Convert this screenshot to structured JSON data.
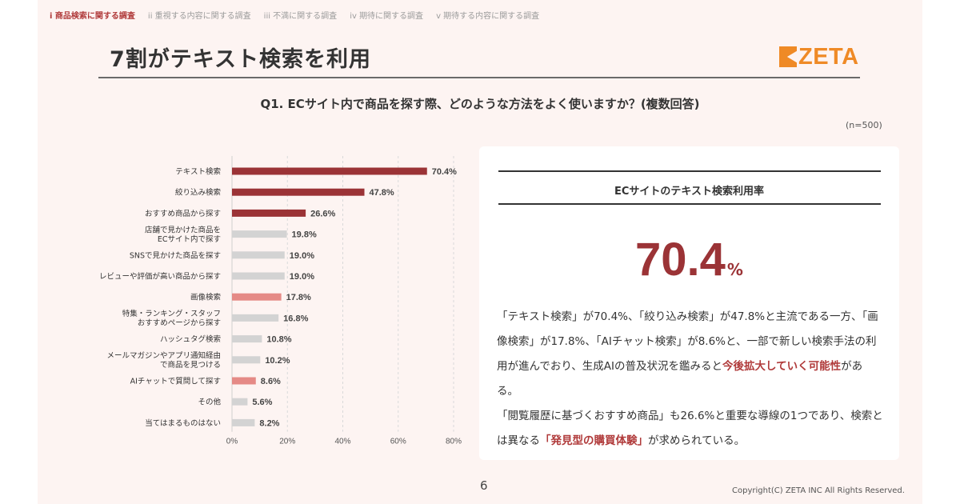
{
  "nav": {
    "items": [
      {
        "label": "i 商品検索に関する調査",
        "active": true
      },
      {
        "label": "ii 重視する内容に関する調査",
        "active": false
      },
      {
        "label": "iii 不満に関する調査",
        "active": false
      },
      {
        "label": "iv 期待に関する調査",
        "active": false
      },
      {
        "label": "v 期待する内容に関する調査",
        "active": false
      }
    ]
  },
  "slide": {
    "title": "7割がテキスト検索を利用",
    "logo_text": "ZETA",
    "question": "Q1. ECサイト内で商品を探す際、どのような方法をよく使いますか？(複数回答)",
    "sample_size": "(n=500)",
    "page_number": "6",
    "copyright": "Copyright(C) ZETA INC All Rights Reserved."
  },
  "panel": {
    "title": "ECサイトのテキスト検索利用率",
    "big_value": "70.4",
    "big_unit": "%",
    "body": {
      "p1": "「テキスト検索」が70.4%、「絞り込み検索」が47.8%と主流である一方、「画像検索」が17.8%、「AIチャット検索」が8.6%と、一部で新しい検索手法の利用が進んでおり、生成AIの普及状況を鑑みると",
      "p1_em": "今後拡大していく可能性",
      "p1_end": "がある。",
      "p2": "「閲覧履歴に基づくおすすめ商品」も26.6%と重要な導線の1つであり、検索とは異なる",
      "p2_em": "「発見型の購買体験」",
      "p2_end": "が求められている。"
    }
  },
  "chart_data": {
    "type": "bar",
    "orientation": "horizontal",
    "categories": [
      "テキスト検索",
      "絞り込み検索",
      "おすすめ商品から探す",
      "店舗で見かけた商品を\nECサイト内で探す",
      "SNSで見かけた商品を探す",
      "レビューや評価が高い商品から探す",
      "画像検索",
      "特集・ランキング・スタッフ\nおすすめページから探す",
      "ハッシュタグ検索",
      "メールマガジンやアプリ通知経由\nで商品を見つける",
      "AIチャットで質問して探す",
      "その他",
      "当てはまるものはない"
    ],
    "values": [
      70.4,
      47.8,
      26.6,
      19.8,
      19.0,
      19.0,
      17.8,
      16.8,
      10.8,
      10.2,
      8.6,
      5.6,
      8.2
    ],
    "value_labels": [
      "70.4%",
      "47.8%",
      "26.6%",
      "19.8%",
      "19.0%",
      "19.0%",
      "17.8%",
      "16.8%",
      "10.8%",
      "10.2%",
      "8.6%",
      "5.6%",
      "8.2%"
    ],
    "bar_colors": [
      "#9b3336",
      "#9b3336",
      "#9b3336",
      "#d3d3d3",
      "#d3d3d3",
      "#d3d3d3",
      "#e58a86",
      "#d3d3d3",
      "#d3d3d3",
      "#d3d3d3",
      "#e58a86",
      "#d3d3d3",
      "#d3d3d3"
    ],
    "xlim": [
      0,
      80
    ],
    "x_ticks": [
      0,
      20,
      40,
      60,
      80
    ],
    "x_tick_labels": [
      "0%",
      "20%",
      "40%",
      "60%",
      "80%"
    ],
    "grid": "vertical dashed"
  }
}
